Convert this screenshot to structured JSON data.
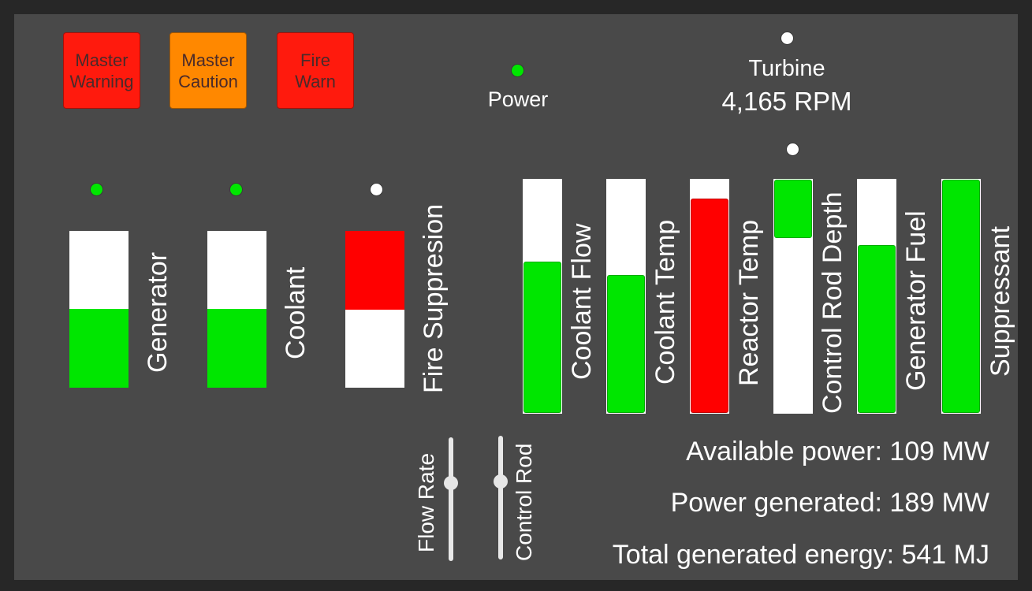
{
  "warnings": [
    {
      "id": "master-warning",
      "lines": [
        "Master",
        "Warning"
      ],
      "color": "#ff1a0d"
    },
    {
      "id": "master-caution",
      "lines": [
        "Master",
        "Caution"
      ],
      "color": "#ff8800"
    },
    {
      "id": "fire-warn",
      "lines": [
        "Fire",
        "Warn"
      ],
      "color": "#ff1a0d"
    }
  ],
  "power": {
    "label": "Power",
    "led_color": "#00e600"
  },
  "turbine": {
    "label": "Turbine",
    "rpm": "4,165 RPM",
    "led_color": "#ffffff"
  },
  "rod_led": {
    "led_color": "#ffffff"
  },
  "left_gauges": [
    {
      "label": "Generator",
      "led_color": "#00e600",
      "fill_fraction": 0.5,
      "fill_color": "#00e600",
      "fill_from": "bottom"
    },
    {
      "label": "Coolant",
      "led_color": "#00e600",
      "fill_fraction": 0.5,
      "fill_color": "#00e600",
      "fill_from": "bottom"
    },
    {
      "label": "Fire Suppresion",
      "led_color": "#ffffff",
      "fill_fraction": 0.5,
      "fill_color": "#ff0000",
      "fill_from": "top"
    }
  ],
  "meters": [
    {
      "label": "Coolant Flow",
      "fill_fraction": 0.65,
      "fill_color": "#00e600",
      "fill_from": "bottom"
    },
    {
      "label": "Coolant Temp",
      "fill_fraction": 0.59,
      "fill_color": "#00e600",
      "fill_from": "bottom"
    },
    {
      "label": "Reactor Temp",
      "fill_fraction": 0.92,
      "fill_color": "#ff0000",
      "fill_from": "bottom"
    },
    {
      "label": "Control Rod Depth",
      "fill_fraction": 0.25,
      "fill_color": "#00e600",
      "fill_from": "top"
    },
    {
      "label": "Generator Fuel",
      "fill_fraction": 0.72,
      "fill_color": "#00e600",
      "fill_from": "bottom"
    },
    {
      "label": "Suppressant",
      "fill_fraction": 1.0,
      "fill_color": "#00e600",
      "fill_from": "bottom"
    }
  ],
  "sliders": [
    {
      "label": "Flow Rate",
      "value_fraction": 0.63
    },
    {
      "label": "Control Rod",
      "value_fraction": 0.63
    }
  ],
  "stats": {
    "available_power": "Available power: 109 MW",
    "power_generated": "Power generated: 189 MW",
    "total_energy": "Total generated energy: 541 MJ"
  }
}
